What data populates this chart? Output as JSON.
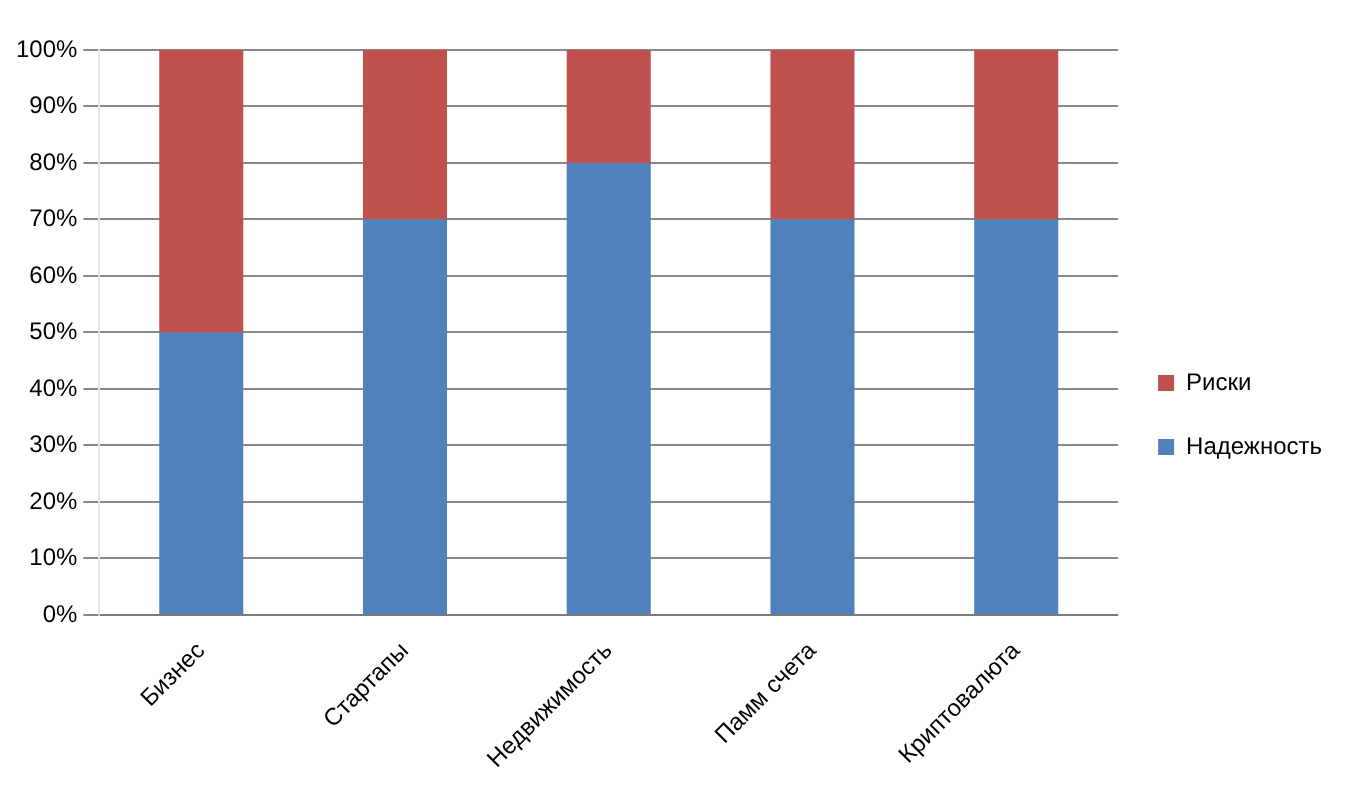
{
  "chart_data": {
    "type": "bar",
    "stacked": true,
    "categories": [
      "Бизнес",
      "Стартапы",
      "Недвижимость",
      "Памм счета",
      "Криптовалюта"
    ],
    "series": [
      {
        "name": "Надежность",
        "color": "#4f81bd",
        "values": [
          50,
          70,
          80,
          70,
          70
        ]
      },
      {
        "name": "Риски",
        "color": "#c0504d",
        "values": [
          50,
          30,
          20,
          30,
          30
        ]
      }
    ],
    "ylim": [
      0,
      100
    ],
    "yticks": [
      {
        "value": 0,
        "label": "0%"
      },
      {
        "value": 10,
        "label": "10%"
      },
      {
        "value": 20,
        "label": "20%"
      },
      {
        "value": 30,
        "label": "30%"
      },
      {
        "value": 40,
        "label": "40%"
      },
      {
        "value": 50,
        "label": "50%"
      },
      {
        "value": 60,
        "label": "60%"
      },
      {
        "value": 70,
        "label": "70%"
      },
      {
        "value": 80,
        "label": "80%"
      },
      {
        "value": 90,
        "label": "90%"
      },
      {
        "value": 100,
        "label": "100%"
      }
    ],
    "grid": "y",
    "legend": "right"
  }
}
